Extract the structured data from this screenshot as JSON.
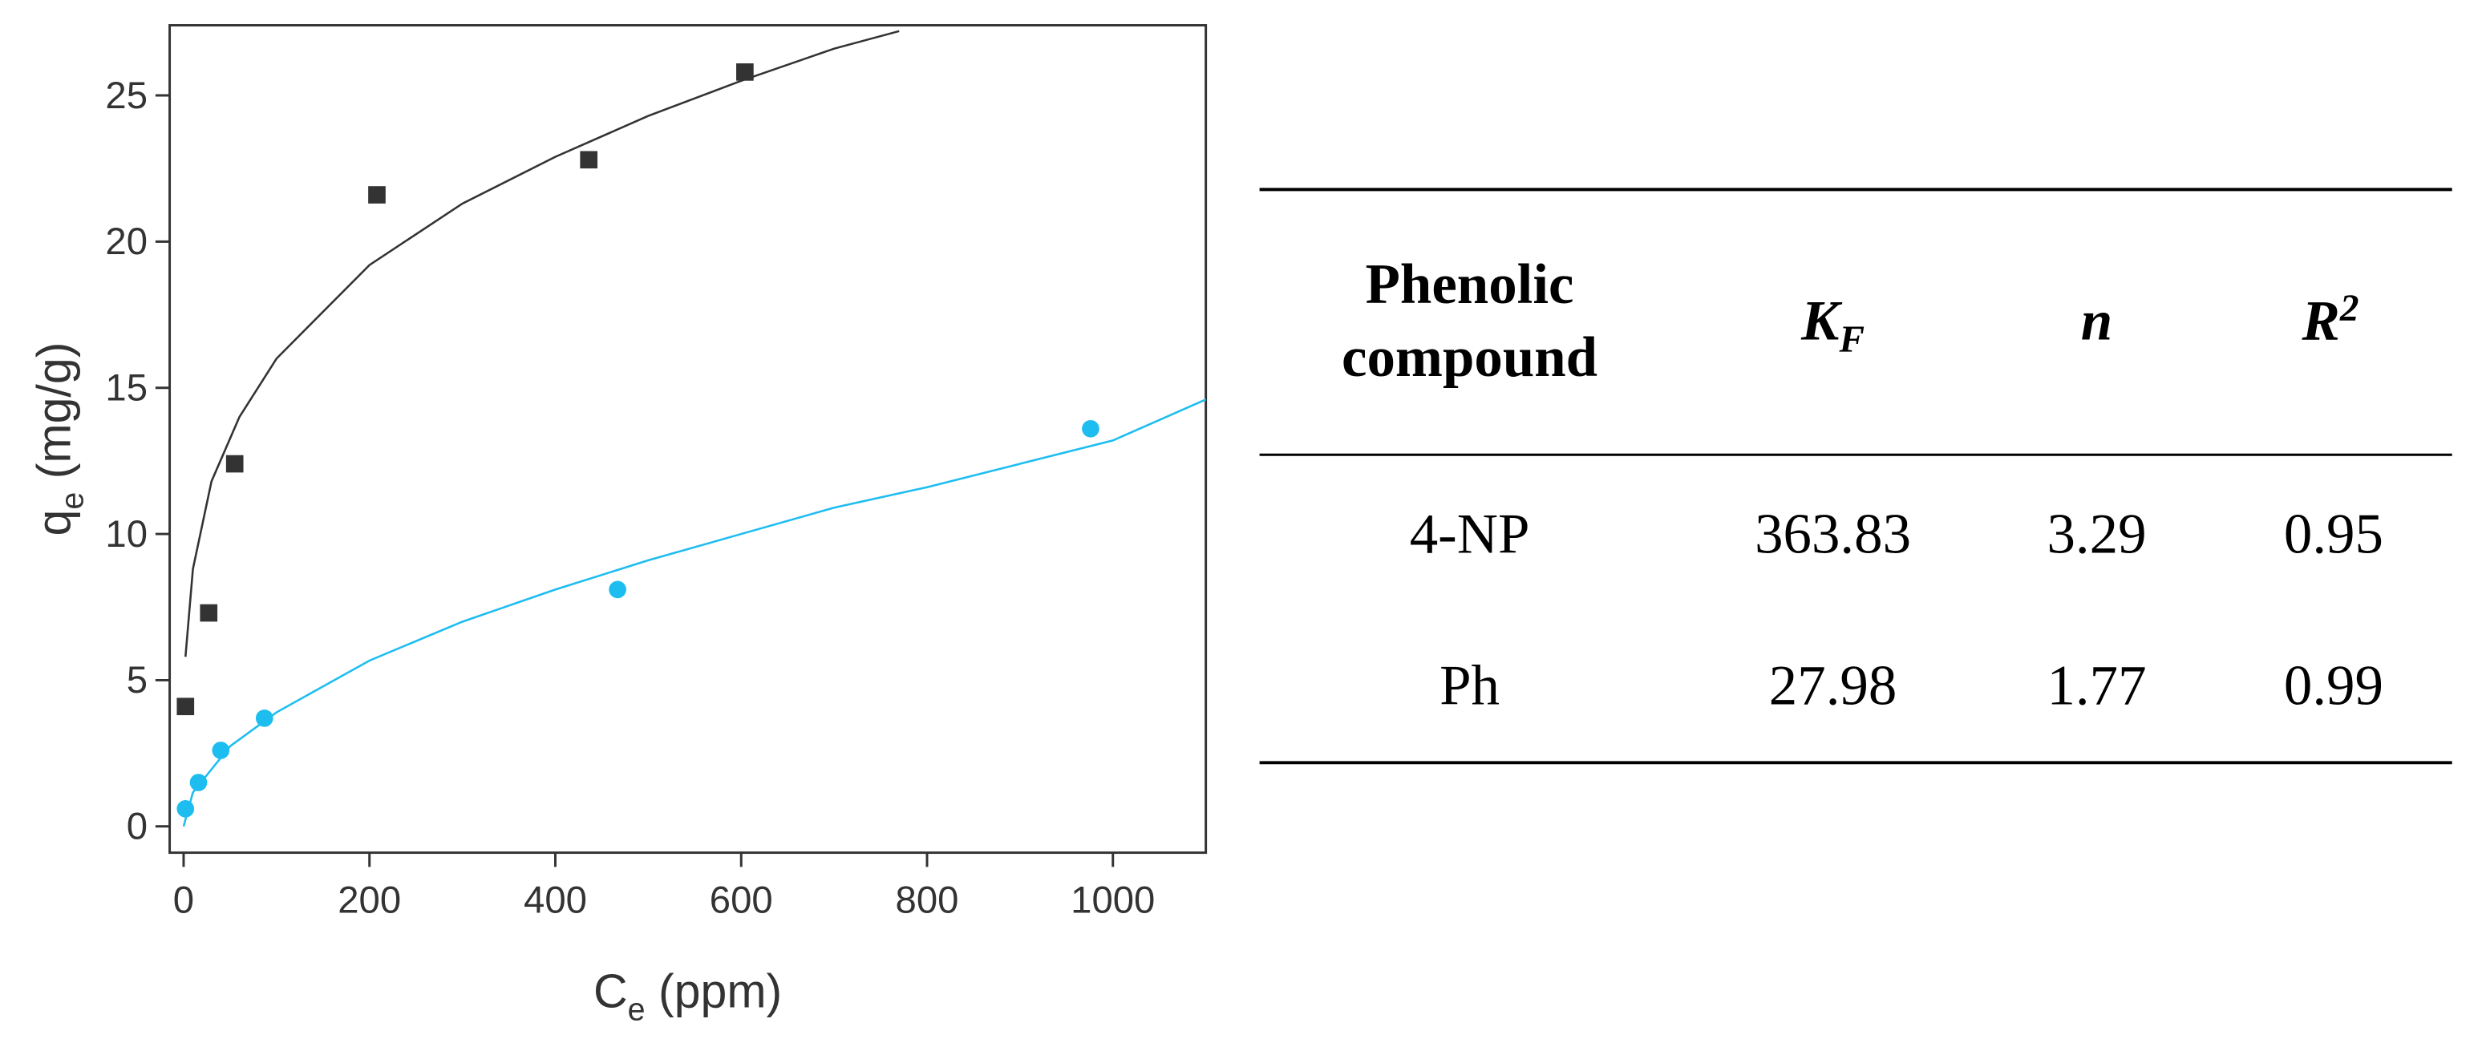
{
  "chart_data": {
    "type": "scatter",
    "x_label": [
      "C",
      "e",
      " (ppm)"
    ],
    "y_label": [
      "q",
      "e",
      " (mg/g)"
    ],
    "xlim": [
      -15,
      1100
    ],
    "xticks": [
      0,
      200,
      400,
      600,
      800,
      1000
    ],
    "ylim": [
      -0.9,
      27.4
    ],
    "yticks": [
      0,
      5,
      10,
      15,
      20,
      25
    ],
    "series": [
      {
        "color": "#333333",
        "marker": "square",
        "x": [
          2,
          27,
          55,
          208,
          436,
          604
        ],
        "values": [
          4.1,
          7.3,
          12.4,
          21.6,
          22.8,
          25.8
        ]
      },
      {
        "color": "#1ebdf0",
        "marker": "circle",
        "x": [
          2,
          16,
          40,
          87,
          467,
          976
        ],
        "values": [
          0.6,
          1.5,
          2.6,
          3.7,
          8.1,
          13.6
        ]
      }
    ],
    "fits": [
      {
        "color": "#333333",
        "x": [
          2,
          10,
          30,
          60,
          100,
          200,
          300,
          400,
          500,
          600,
          700,
          770
        ],
        "y": [
          5.8,
          8.8,
          11.8,
          14.0,
          16.0,
          19.2,
          21.3,
          22.9,
          24.3,
          25.5,
          26.6,
          27.2
        ]
      },
      {
        "color": "#1ebdf0",
        "x": [
          0,
          10,
          50,
          100,
          200,
          300,
          400,
          500,
          600,
          700,
          800,
          900,
          1000,
          1100
        ],
        "y": [
          0,
          1.16,
          2.74,
          3.9,
          5.67,
          7.0,
          8.1,
          9.1,
          10.0,
          10.9,
          11.6,
          12.4,
          13.2,
          14.6
        ]
      }
    ]
  },
  "table": {
    "columns": [
      [
        "Phenolic",
        "compound"
      ],
      [
        "K",
        "F"
      ],
      "n",
      [
        "R",
        "2"
      ]
    ],
    "rows": [
      [
        "4-NP",
        "363.83",
        "3.29",
        "0.95"
      ],
      [
        "Ph",
        "27.98",
        "1.77",
        "0.99"
      ]
    ]
  }
}
